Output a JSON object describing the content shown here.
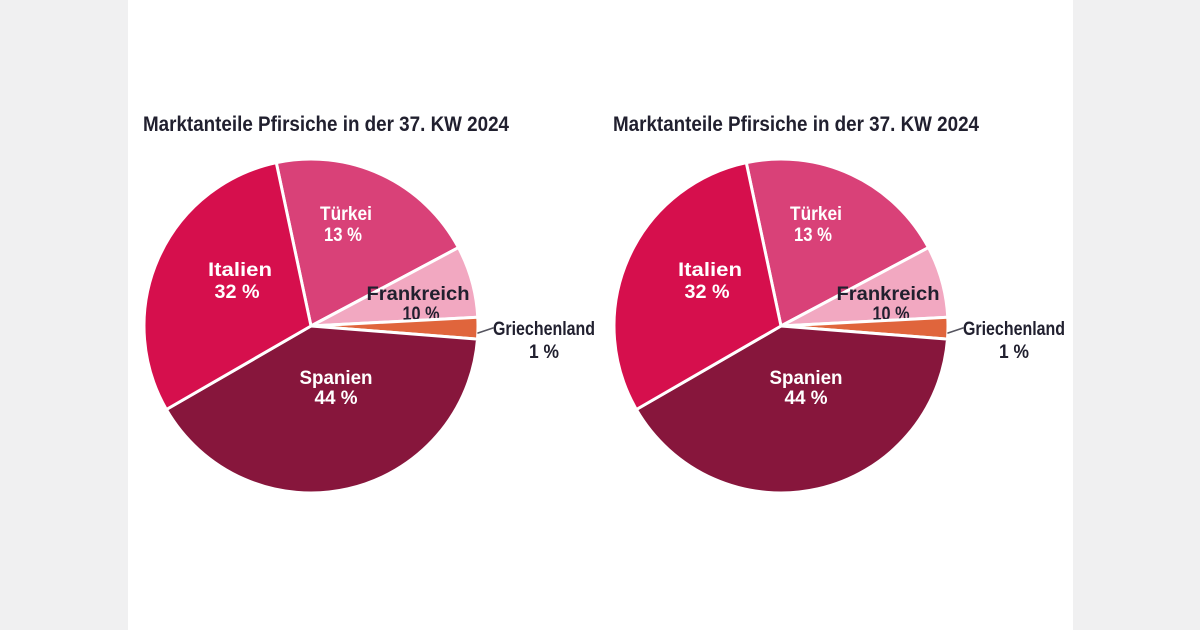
{
  "page": {
    "background": "#f0f0f1",
    "panel_background": "#ffffff",
    "text_color": "#21202f"
  },
  "chart_data": [
    {
      "type": "pie",
      "title": "Marktanteile Pfirsiche in der 37. KW 2024",
      "unit": "%",
      "legend_position": "labels-on-slices",
      "slices": [
        {
          "label": "Türkei",
          "value": 13,
          "value_text": "13 %",
          "color": "#d94178",
          "label_color": "#ffffff",
          "label_outside": false
        },
        {
          "label": "Frankreich",
          "value": 10,
          "value_text": "10 %",
          "color": "#f2a8c1",
          "label_color": "#21202f",
          "label_outside": false
        },
        {
          "label": "Griechenland",
          "value": 1,
          "value_text": "1 %",
          "color": "#e0653c",
          "label_color": "#21202f",
          "label_outside": true
        },
        {
          "label": "Spanien",
          "value": 44,
          "value_text": "44 %",
          "color": "#87163c",
          "label_color": "#ffffff",
          "label_outside": false
        },
        {
          "label": "Italien",
          "value": 32,
          "value_text": "32 %",
          "color": "#d60f4d",
          "label_color": "#ffffff",
          "label_outside": false
        }
      ]
    },
    {
      "type": "pie",
      "title": "Marktanteile Pfirsiche in der 37. KW 2024",
      "unit": "%",
      "legend_position": "labels-on-slices",
      "slices": [
        {
          "label": "Türkei",
          "value": 13,
          "value_text": "13 %",
          "color": "#d94178",
          "label_color": "#ffffff",
          "label_outside": false
        },
        {
          "label": "Frankreich",
          "value": 10,
          "value_text": "10 %",
          "color": "#f2a8c1",
          "label_color": "#21202f",
          "label_outside": false
        },
        {
          "label": "Griechenland",
          "value": 1,
          "value_text": "1 %",
          "color": "#e0653c",
          "label_color": "#21202f",
          "label_outside": true
        },
        {
          "label": "Spanien",
          "value": 44,
          "value_text": "44 %",
          "color": "#87163c",
          "label_color": "#ffffff",
          "label_outside": false
        },
        {
          "label": "Italien",
          "value": 32,
          "value_text": "32 %",
          "color": "#d60f4d",
          "label_color": "#ffffff",
          "label_outside": false
        }
      ]
    }
  ]
}
